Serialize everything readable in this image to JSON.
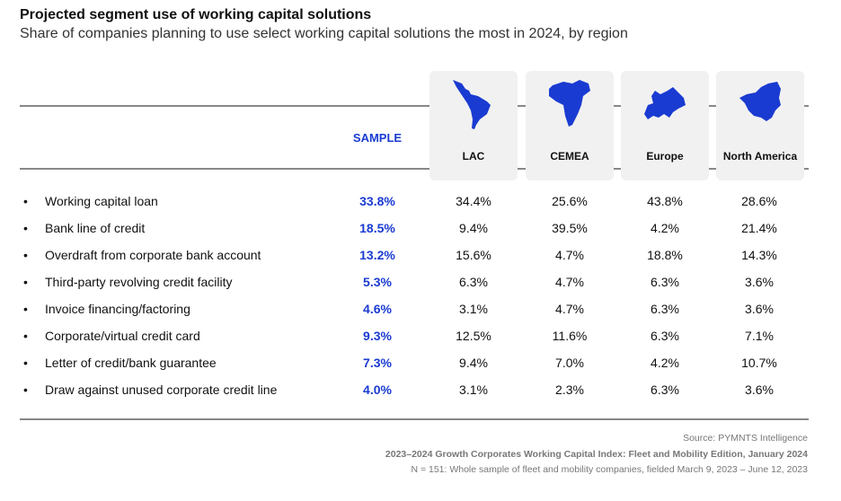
{
  "title": "Projected segment use of working capital solutions",
  "subtitle": "Share of companies planning to use select working capital solutions the most in 2024, by region",
  "columns": {
    "sample": "SAMPLE",
    "regions": [
      {
        "label": "LAC",
        "icon": "latin-america-map-icon"
      },
      {
        "label": "CEMEA",
        "icon": "africa-middle-east-map-icon"
      },
      {
        "label": "Europe",
        "icon": "europe-map-icon"
      },
      {
        "label": "North America",
        "icon": "north-america-map-icon"
      }
    ]
  },
  "colors": {
    "accent": "#1a3bd1",
    "panel": "#f1f1f1"
  },
  "rows": [
    {
      "label": "Working capital loan",
      "sample": "33.8%",
      "values": [
        "34.4%",
        "25.6%",
        "43.8%",
        "28.6%"
      ]
    },
    {
      "label": "Bank line of credit",
      "sample": "18.5%",
      "values": [
        "9.4%",
        "39.5%",
        "4.2%",
        "21.4%"
      ]
    },
    {
      "label": "Overdraft from corporate bank account",
      "sample": "13.2%",
      "values": [
        "15.6%",
        "4.7%",
        "18.8%",
        "14.3%"
      ]
    },
    {
      "label": "Third-party revolving credit facility",
      "sample": "5.3%",
      "values": [
        "6.3%",
        "4.7%",
        "6.3%",
        "3.6%"
      ]
    },
    {
      "label": "Invoice financing/factoring",
      "sample": "4.6%",
      "values": [
        "3.1%",
        "4.7%",
        "6.3%",
        "3.6%"
      ]
    },
    {
      "label": "Corporate/virtual credit card",
      "sample": "9.3%",
      "values": [
        "12.5%",
        "11.6%",
        "6.3%",
        "7.1%"
      ]
    },
    {
      "label": "Letter of credit/bank guarantee",
      "sample": "7.3%",
      "values": [
        "9.4%",
        "7.0%",
        "4.2%",
        "10.7%"
      ]
    },
    {
      "label": "Draw against unused corporate credit line",
      "sample": "4.0%",
      "values": [
        "3.1%",
        "2.3%",
        "6.3%",
        "3.6%"
      ]
    }
  ],
  "footer": {
    "source": "Source: PYMNTS Intelligence",
    "report": "2023–2024 Growth Corporates Working Capital Index: Fleet and Mobility Edition, January 2024",
    "note": "N = 151: Whole sample of fleet and mobility companies, fielded March 9, 2023 – June 12, 2023"
  }
}
